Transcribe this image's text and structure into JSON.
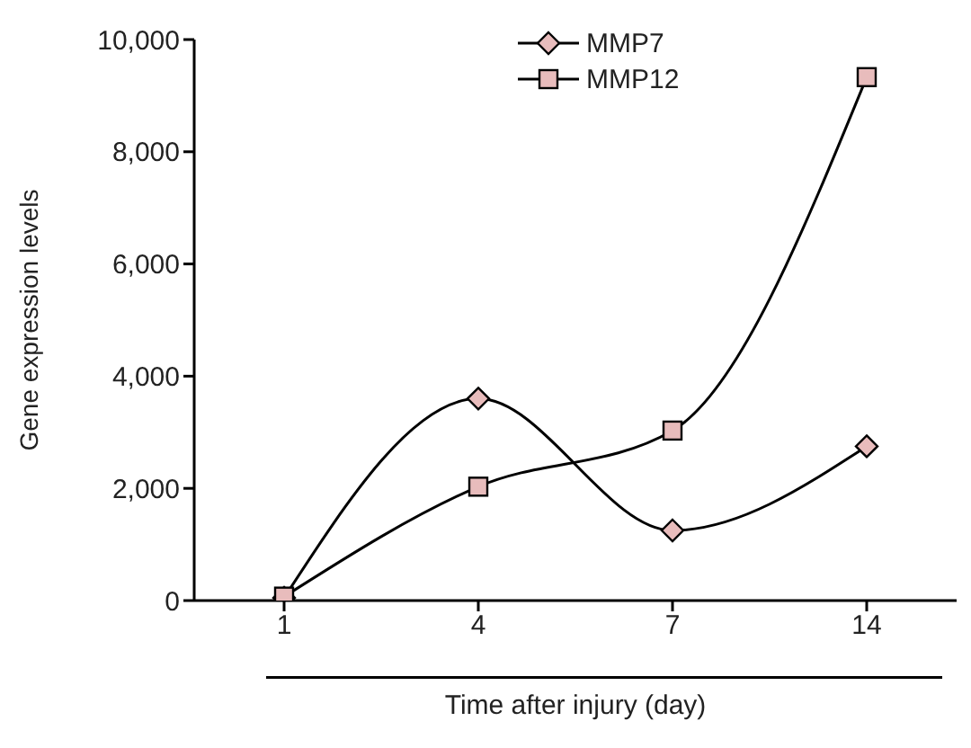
{
  "chart_data": {
    "type": "line",
    "xlabel": "Time after injury (day)",
    "ylabel": "Gene expression levels",
    "categories": [
      "1",
      "4",
      "7",
      "14"
    ],
    "series": [
      {
        "name": "MMP7",
        "color": "#000000",
        "marker": "diamond",
        "values": [
          50,
          3600,
          1250,
          2750
        ]
      },
      {
        "name": "MMP12",
        "color": "#000000",
        "marker": "square",
        "values": [
          70,
          2030,
          3030,
          9330
        ]
      }
    ],
    "ylim": [
      0,
      10000
    ],
    "yticks": [
      0,
      {
        "value": 2000,
        "label": "2,000"
      },
      {
        "value": 4000,
        "label": "4,000"
      },
      {
        "value": 6000,
        "label": "6,000"
      },
      {
        "value": 8000,
        "label": "8,000"
      },
      {
        "value": 10000,
        "label": "10,000"
      }
    ],
    "grid": false,
    "legend": "top right"
  }
}
